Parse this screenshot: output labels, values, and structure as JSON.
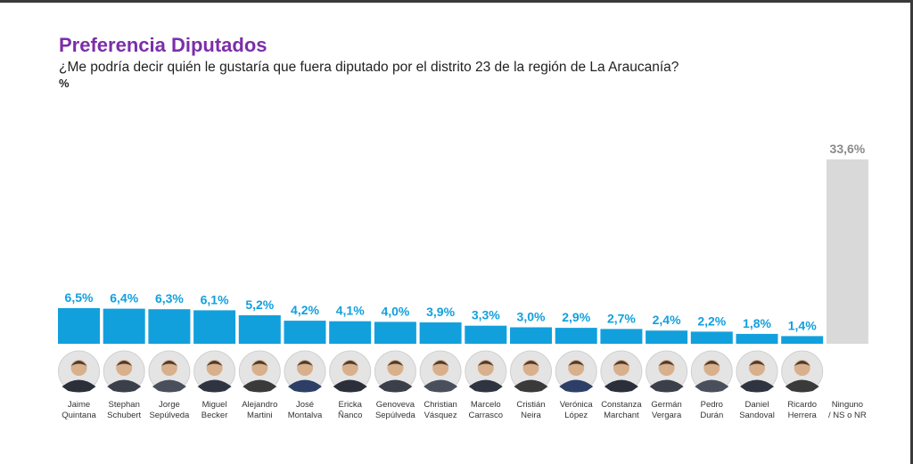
{
  "header": {
    "title": "Preferencia Diputados",
    "subtitle": "¿Me podría decir quién le gustaría que fuera diputado por el distrito 23 de la región de La Araucanía?",
    "unit": "%"
  },
  "colors": {
    "title": "#7b2fa8",
    "bar": "#12a0dd",
    "bar_none": "#d9d9d9",
    "label": "#12a0dd",
    "label_none": "#8a8a8a"
  },
  "chart_data": {
    "type": "bar",
    "title": "Preferencia Diputados",
    "unit": "%",
    "categories": [
      [
        "Jaime",
        "Quintana"
      ],
      [
        "Stephan",
        "Schubert"
      ],
      [
        "Jorge",
        "Sepúlveda"
      ],
      [
        "Miguel",
        "Becker"
      ],
      [
        "Alejandro",
        "Martini"
      ],
      [
        "José",
        "Montalva"
      ],
      [
        "Ericka",
        "Ñanco"
      ],
      [
        "Genoveva",
        "Sepúlveda"
      ],
      [
        "Christian",
        "Vásquez"
      ],
      [
        "Marcelo",
        "Carrasco"
      ],
      [
        "Cristián",
        "Neira"
      ],
      [
        "Verónica",
        "López"
      ],
      [
        "Constanza",
        "Marchant"
      ],
      [
        "Germán",
        "Vergara"
      ],
      [
        "Pedro",
        "Durán"
      ],
      [
        "Daniel",
        "Sandoval"
      ],
      [
        "Ricardo",
        "Herrera"
      ],
      [
        "Ninguno",
        "/ NS o NR"
      ]
    ],
    "values": [
      6.5,
      6.4,
      6.3,
      6.1,
      5.2,
      4.2,
      4.1,
      4.0,
      3.9,
      3.3,
      3.0,
      2.9,
      2.7,
      2.4,
      2.2,
      1.8,
      1.4,
      33.6
    ],
    "value_labels": [
      "6,5%",
      "6,4%",
      "6,3%",
      "6,1%",
      "5,2%",
      "4,2%",
      "4,1%",
      "4,0%",
      "3,9%",
      "3,3%",
      "3,0%",
      "2,9%",
      "2,7%",
      "2,4%",
      "2,2%",
      "1,8%",
      "1,4%",
      "33,6%"
    ],
    "ylim": [
      0,
      33.6
    ],
    "grid": false,
    "legend": "none"
  }
}
